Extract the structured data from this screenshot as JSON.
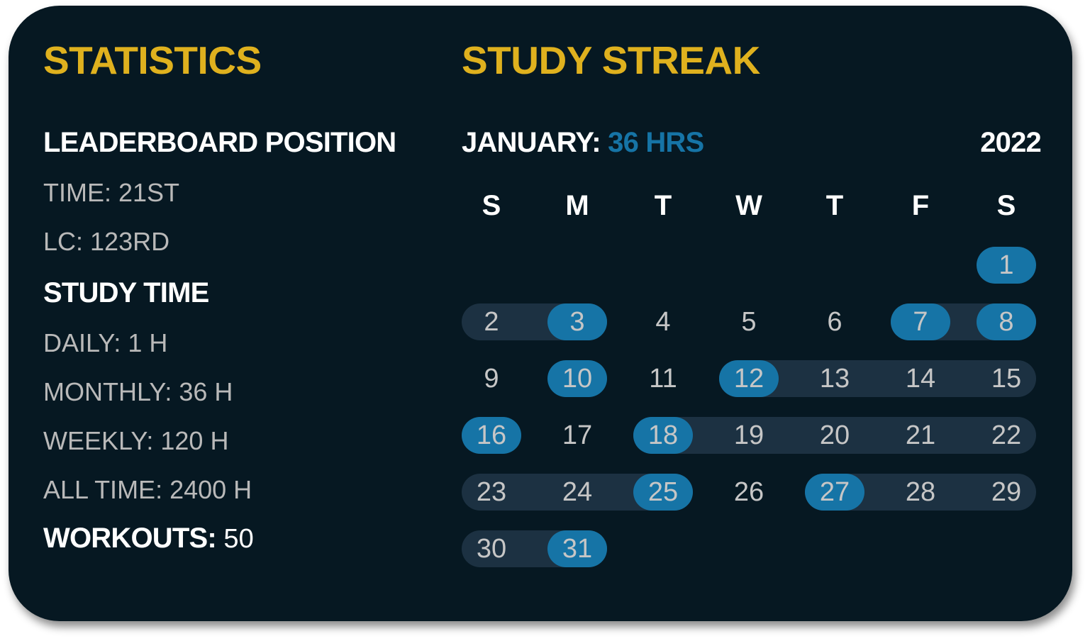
{
  "statistics": {
    "title": "STATISTICS",
    "leaderboard": {
      "heading": "LEADERBOARD POSITION",
      "time": "TIME: 21ST",
      "lc": "LC: 123RD"
    },
    "study_time": {
      "heading": "STUDY TIME",
      "daily": "DAILY: 1 H",
      "monthly": "MONTHLY: 36 H",
      "weekly": "WEEKLY: 120 H",
      "all_time": "ALL TIME: 2400 H"
    },
    "workouts": {
      "label": "WORKOUTS:",
      "value": " 50"
    }
  },
  "streak": {
    "title": "STUDY STREAK",
    "month_label": "JANUARY:",
    "month_hours": " 36 HRS",
    "year": "2022",
    "weekdays": [
      "S",
      "M",
      "T",
      "W",
      "T",
      "F",
      "S"
    ],
    "days_in_month": 31,
    "highlighted_days": [
      1,
      3,
      7,
      8,
      10,
      12,
      16,
      18,
      25,
      27,
      31
    ],
    "streak_ranges": [
      [
        2,
        3
      ],
      [
        7,
        8
      ],
      [
        12,
        15
      ],
      [
        18,
        22
      ],
      [
        23,
        25
      ],
      [
        27,
        29
      ],
      [
        30,
        31
      ]
    ],
    "colors": {
      "title": "#dfb11e",
      "accent": "#1674a6",
      "streak": "#1c3142",
      "background": "#061822"
    }
  }
}
